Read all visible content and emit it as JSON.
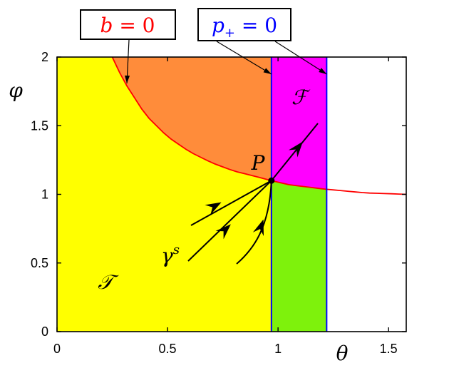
{
  "chart_data": {
    "type": "area",
    "x_range": [
      0,
      1.58
    ],
    "y_range": [
      0,
      2
    ],
    "x_ticks": [
      "0",
      "0.5",
      "1",
      "1.5"
    ],
    "y_ticks": [
      "0",
      "0.5",
      "1",
      "1.5",
      "2"
    ],
    "x_tick_values": [
      0,
      0.5,
      1,
      1.5
    ],
    "y_tick_values": [
      0,
      0.5,
      1,
      1.5,
      2
    ],
    "xlabel": "θ",
    "ylabel": "φ",
    "grid": false,
    "curve_b0": {
      "label_lhs": "b",
      "label_rhs": " = 0",
      "color": "#ff0000",
      "x": [
        0.25,
        0.3,
        0.4,
        0.5,
        0.6,
        0.7,
        0.8,
        0.9,
        0.97,
        1.05,
        1.2,
        1.3,
        1.4,
        1.5,
        1.58
      ],
      "y": [
        2.0,
        1.83,
        1.58,
        1.42,
        1.31,
        1.23,
        1.17,
        1.13,
        1.1,
        1.07,
        1.04,
        1.025,
        1.01,
        1.005,
        1.0
      ]
    },
    "line_p0": {
      "label_lhs": "p",
      "label_sub": "+",
      "label_rhs": " = 0",
      "color": "#0000ff",
      "x_values": [
        0.97,
        1.22
      ]
    },
    "regions": {
      "T": {
        "label": "𝒯",
        "color": "#ffff00"
      },
      "F": {
        "label": "ℱ",
        "color": "#ff00ff"
      },
      "orange": {
        "color": "#ff8c3a"
      },
      "green": {
        "color": "#7ef20c"
      }
    },
    "point_P": {
      "label": "P",
      "x": 0.97,
      "y": 1.1
    },
    "stable_manifold": {
      "label_base": "γ",
      "label_sup": "s"
    }
  }
}
